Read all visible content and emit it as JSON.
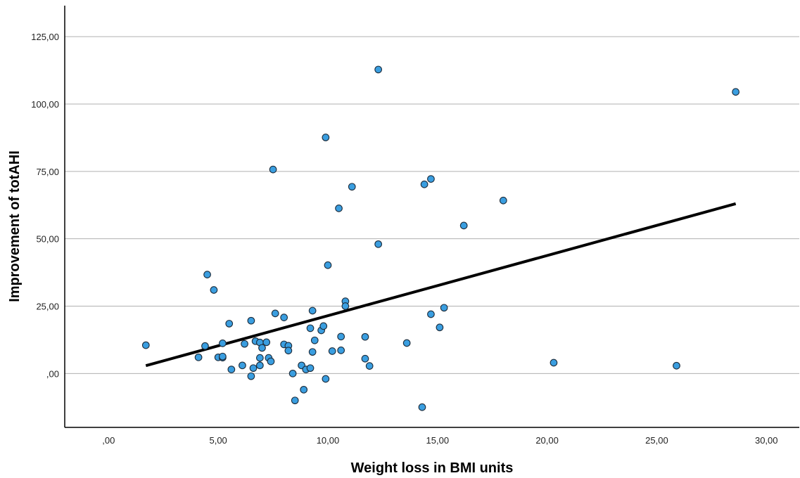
{
  "chart_data": {
    "type": "scatter",
    "title": "",
    "xlabel": "Weight loss in BMI units",
    "ylabel": "Improvement of totAHI",
    "xlim": [
      -2,
      31.5
    ],
    "ylim": [
      -20,
      136
    ],
    "xticks": [
      0,
      5,
      10,
      15,
      20,
      25,
      30
    ],
    "xtick_labels": [
      ",00",
      "5,00",
      "10,00",
      "15,00",
      "20,00",
      "25,00",
      "30,00"
    ],
    "yticks": [
      0,
      25,
      50,
      75,
      100,
      125
    ],
    "ytick_labels": [
      ",00",
      "25,00",
      "50,00",
      "75,00",
      "100,00",
      "125,00"
    ],
    "grid": "horizontal",
    "legend": "none",
    "colors": {
      "point_fill": "#3a9ee0",
      "point_stroke": "#1c2b3a",
      "fit_line": "#000000",
      "grid": "#b0b0b0",
      "axis": "#000000"
    },
    "series": [
      {
        "points": [
          [
            1.7,
            10.5
          ],
          [
            4.1,
            6.0
          ],
          [
            4.4,
            10.2
          ],
          [
            4.5,
            36.7
          ],
          [
            4.8,
            31.0
          ],
          [
            5.0,
            6.0
          ],
          [
            5.2,
            11.2
          ],
          [
            5.2,
            5.9
          ],
          [
            5.2,
            6.3
          ],
          [
            5.5,
            18.5
          ],
          [
            5.6,
            1.5
          ],
          [
            6.1,
            3.0
          ],
          [
            6.2,
            11.0
          ],
          [
            6.5,
            19.6
          ],
          [
            6.5,
            -1.0
          ],
          [
            6.6,
            2.0
          ],
          [
            6.7,
            12.0
          ],
          [
            6.9,
            11.5
          ],
          [
            6.9,
            5.8
          ],
          [
            6.9,
            3.0
          ],
          [
            7.0,
            9.5
          ],
          [
            7.2,
            11.6
          ],
          [
            7.3,
            5.8
          ],
          [
            7.4,
            4.5
          ],
          [
            7.5,
            75.7
          ],
          [
            7.6,
            22.3
          ],
          [
            8.0,
            20.8
          ],
          [
            8.0,
            10.8
          ],
          [
            8.2,
            10.3
          ],
          [
            8.2,
            8.5
          ],
          [
            8.4,
            0.0
          ],
          [
            8.5,
            -10.0
          ],
          [
            8.8,
            3.0
          ],
          [
            8.9,
            -6.0
          ],
          [
            9.0,
            1.5
          ],
          [
            9.2,
            2.0
          ],
          [
            9.2,
            16.8
          ],
          [
            9.3,
            23.3
          ],
          [
            9.3,
            8.0
          ],
          [
            9.4,
            12.3
          ],
          [
            9.7,
            16.0
          ],
          [
            9.8,
            17.6
          ],
          [
            9.9,
            -2.0
          ],
          [
            9.9,
            87.6
          ],
          [
            10.0,
            40.2
          ],
          [
            10.2,
            8.3
          ],
          [
            10.5,
            61.3
          ],
          [
            10.6,
            13.7
          ],
          [
            10.6,
            8.6
          ],
          [
            10.8,
            26.8
          ],
          [
            10.8,
            25.0
          ],
          [
            11.1,
            69.3
          ],
          [
            11.7,
            13.6
          ],
          [
            11.7,
            5.5
          ],
          [
            11.9,
            2.8
          ],
          [
            12.3,
            112.8
          ],
          [
            12.3,
            48.0
          ],
          [
            13.6,
            11.3
          ],
          [
            14.3,
            -12.5
          ],
          [
            14.4,
            70.2
          ],
          [
            14.7,
            72.2
          ],
          [
            14.7,
            22.0
          ],
          [
            15.1,
            17.1
          ],
          [
            15.3,
            24.4
          ],
          [
            16.2,
            54.9
          ],
          [
            18.0,
            64.2
          ],
          [
            20.3,
            4.0
          ],
          [
            25.9,
            2.9
          ],
          [
            28.6,
            104.5
          ]
        ]
      }
    ],
    "fit_line": {
      "x": [
        1.7,
        28.6
      ],
      "y": [
        2.9,
        63.0
      ]
    }
  }
}
